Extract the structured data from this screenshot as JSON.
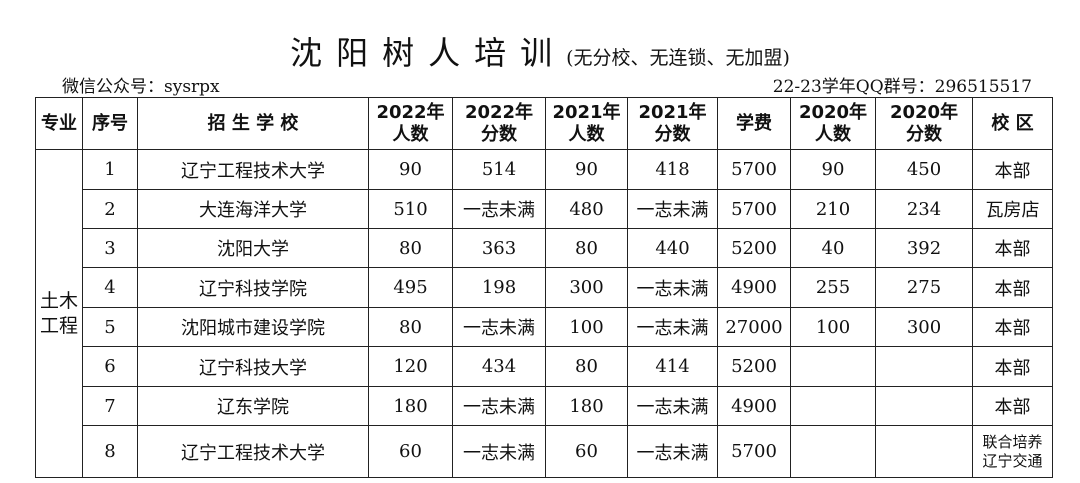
{
  "header": {
    "title": "沈阳树人培训",
    "subtitle": "(无分校、无连锁、无加盟)",
    "wechat": "微信公众号：sysrpx",
    "qq": "22-23学年QQ群号：296515517"
  },
  "table": {
    "columns": [
      "专业",
      "序号",
      "招 生 学 校",
      "2022年\n人数",
      "2022年\n分数",
      "2021年\n人数",
      "2021年\n分数",
      "学费",
      "2020年\n人数",
      "2020年\n分数",
      "校 区"
    ],
    "major": "土木\n工程",
    "rows": [
      [
        1,
        "辽宁工程技术大学",
        90,
        514,
        90,
        418,
        5700,
        90,
        450,
        "本部"
      ],
      [
        2,
        "大连海洋大学",
        510,
        "一志未满",
        480,
        "一志未满",
        5700,
        210,
        234,
        "瓦房店"
      ],
      [
        3,
        "沈阳大学",
        80,
        363,
        80,
        440,
        5200,
        40,
        392,
        "本部"
      ],
      [
        4,
        "辽宁科技学院",
        495,
        198,
        300,
        "一志未满",
        4900,
        255,
        275,
        "本部"
      ],
      [
        5,
        "沈阳城市建设学院",
        80,
        "一志未满",
        100,
        "一志未满",
        27000,
        100,
        300,
        "本部"
      ],
      [
        6,
        "辽宁科技大学",
        120,
        434,
        80,
        414,
        5200,
        null,
        null,
        "本部"
      ],
      [
        7,
        "辽东学院",
        180,
        "一志未满",
        180,
        "一志未满",
        4900,
        null,
        null,
        "本部"
      ],
      [
        8,
        "辽宁工程技术大学",
        60,
        "一志未满",
        60,
        "一志未满",
        5700,
        null,
        null,
        "联合培养\n辽宁交通"
      ]
    ]
  }
}
